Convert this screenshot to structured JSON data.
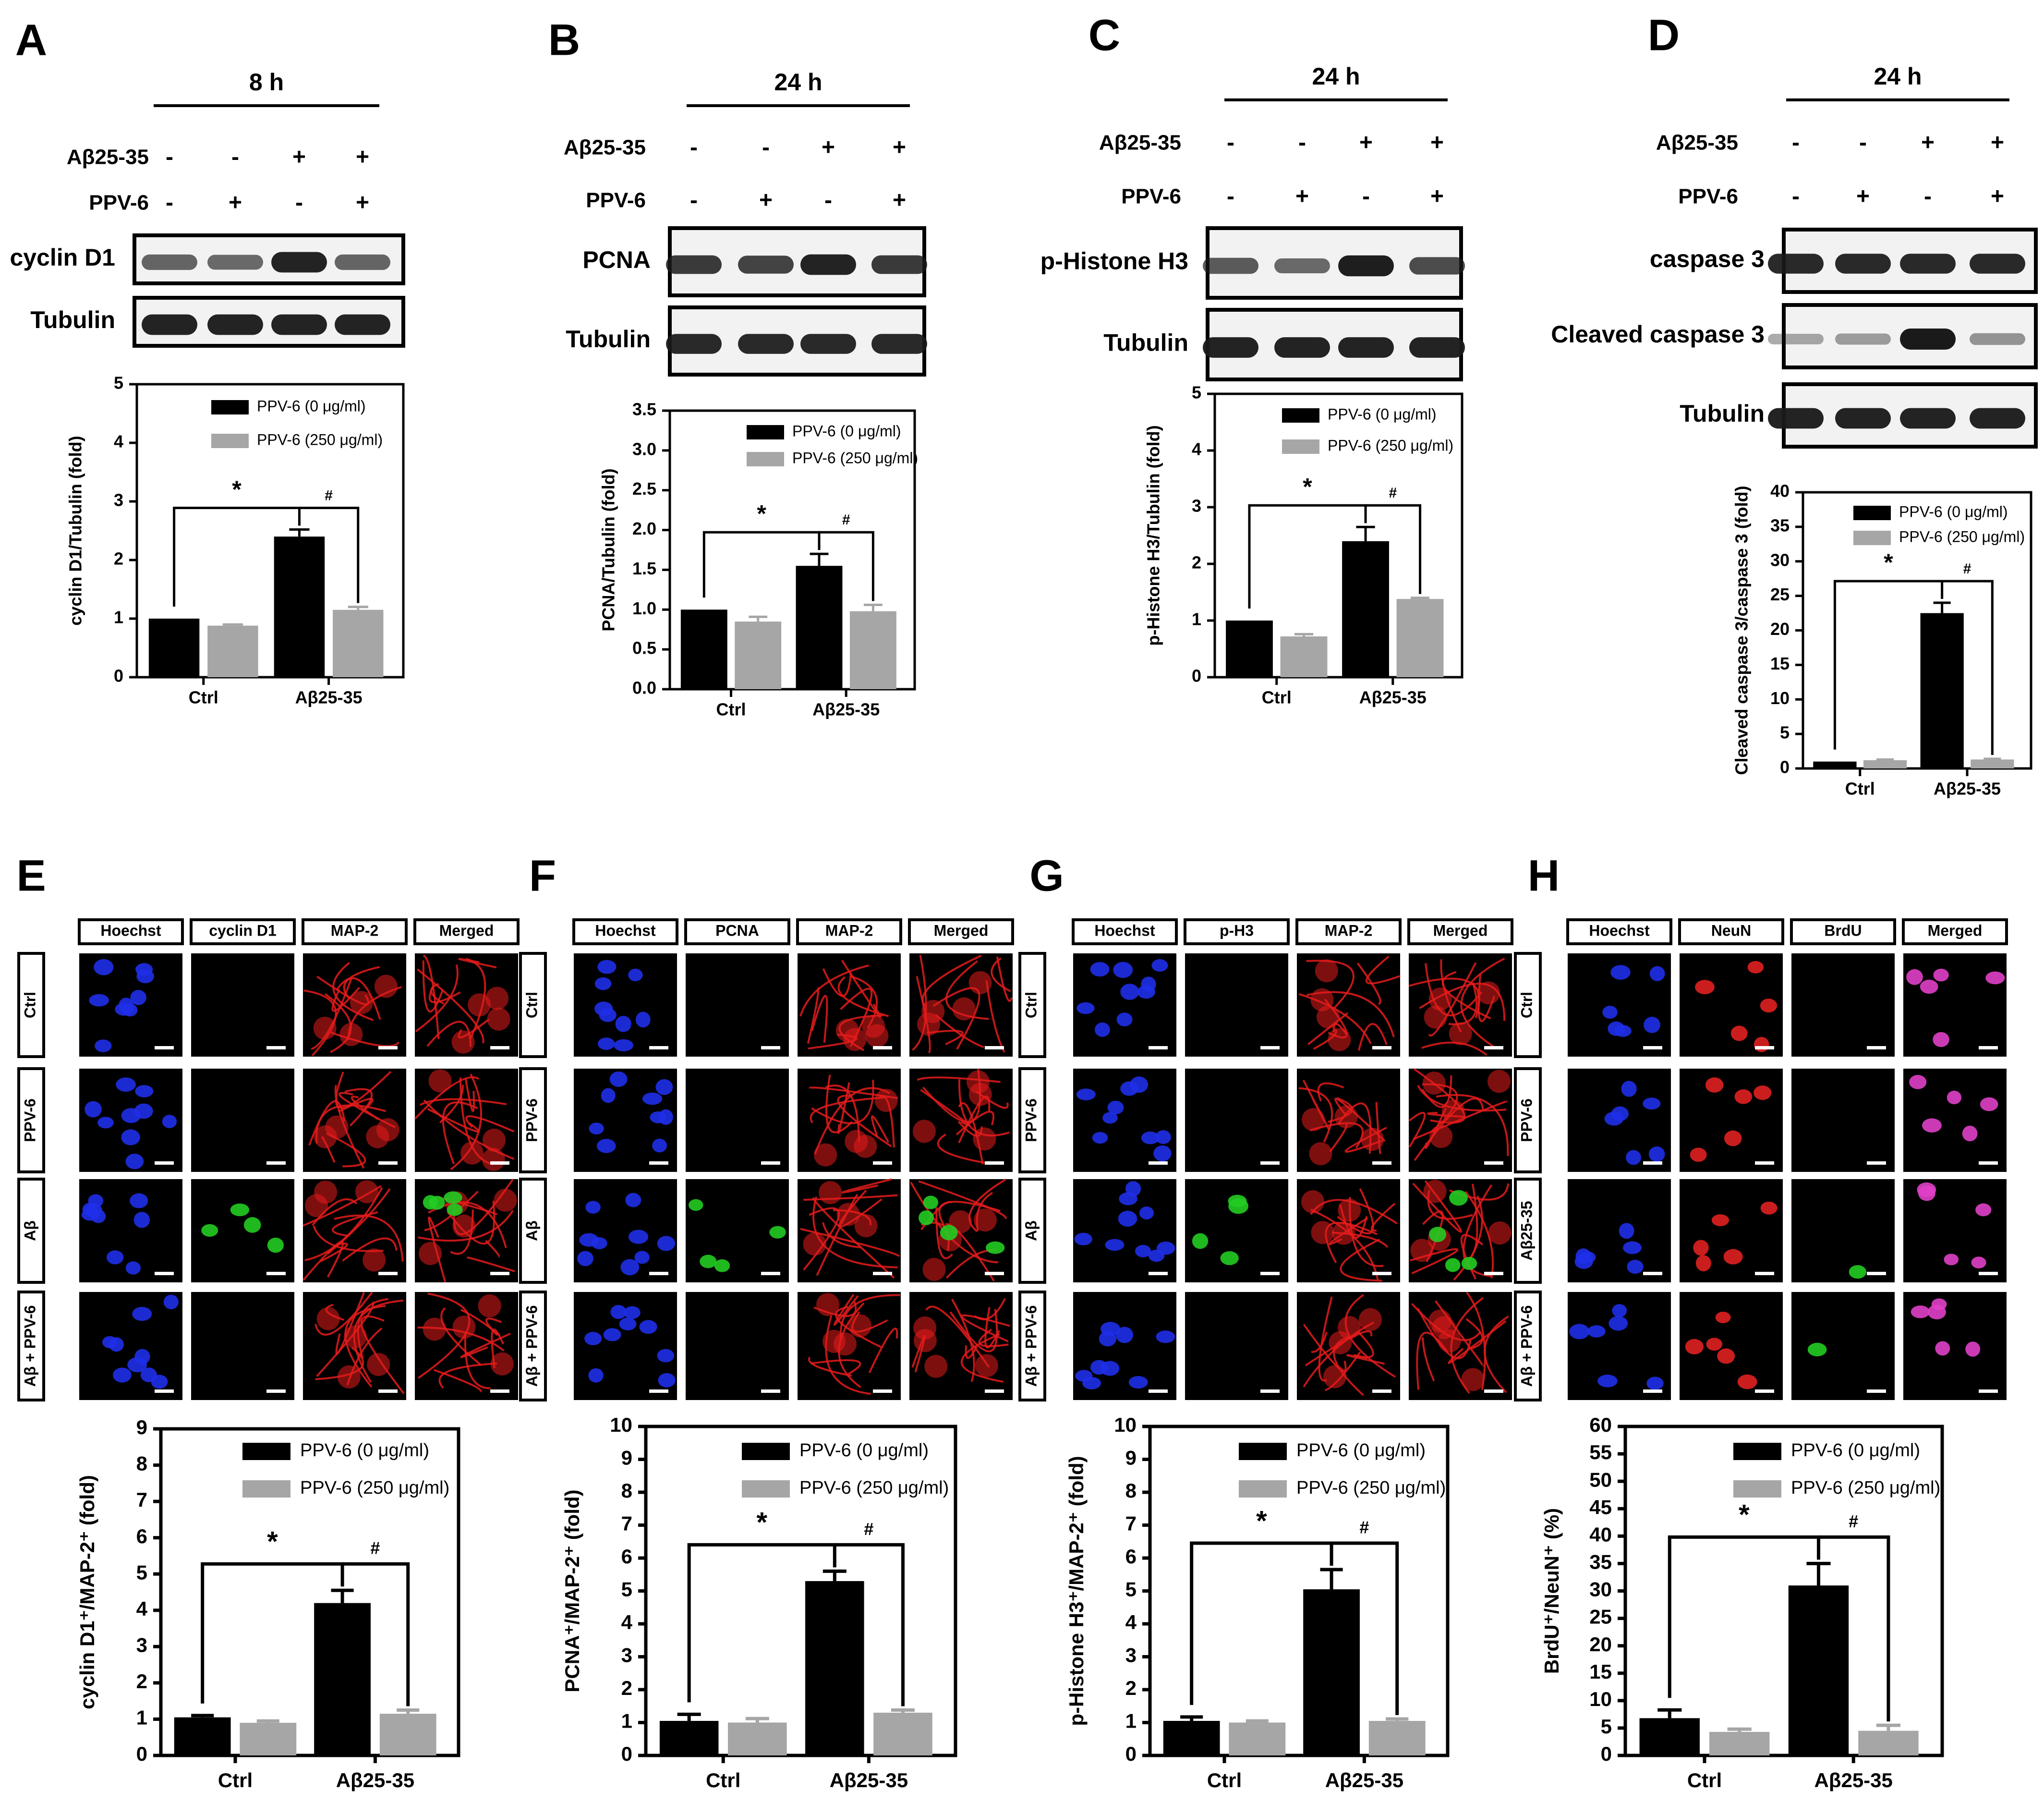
{
  "colors": {
    "series0": "#000000",
    "series1": "#a6a6a6",
    "blot_background": "#f2f2f2",
    "band": "#1a1a1a",
    "hoechst": "#1f2fe8",
    "map2": "#e51b1b",
    "green_stain": "#22cc22",
    "neun": "#e02020",
    "merged_magenta": "#e040c8"
  },
  "labels": {
    "legend_0": "PPV-6 (0 μg/ml)",
    "legend_250": "PPV-6 (250 μg/ml)",
    "ctrl": "Ctrl",
    "abeta": "Aβ25-35",
    "star": "*",
    "hash": "#"
  },
  "western_panels": [
    {
      "letter": "A",
      "time": "8 h",
      "treatment_rows": [
        {
          "label": "Aβ25-35",
          "signs": [
            "-",
            "-",
            "+",
            "+"
          ]
        },
        {
          "label": "PPV-6",
          "signs": [
            "-",
            "+",
            "-",
            "+"
          ]
        }
      ],
      "blots": [
        {
          "label": "cyclin D1",
          "intensity": [
            0.55,
            0.5,
            0.95,
            0.55
          ]
        },
        {
          "label": "Tubulin",
          "intensity": [
            0.95,
            0.95,
            0.95,
            0.95
          ]
        }
      ]
    },
    {
      "letter": "B",
      "time": "24 h",
      "treatment_rows": [
        {
          "label": "Aβ25-35",
          "signs": [
            "-",
            "-",
            "+",
            "+"
          ]
        },
        {
          "label": "PPV-6",
          "signs": [
            "-",
            "+",
            "-",
            "+"
          ]
        }
      ],
      "blots": [
        {
          "label": "PCNA",
          "intensity": [
            0.8,
            0.75,
            0.95,
            0.8
          ]
        },
        {
          "label": "Tubulin",
          "intensity": [
            0.9,
            0.9,
            0.9,
            0.9
          ]
        }
      ]
    },
    {
      "letter": "C",
      "time": "24 h",
      "treatment_rows": [
        {
          "label": "Aβ25-35",
          "signs": [
            "-",
            "-",
            "+",
            "+"
          ]
        },
        {
          "label": "PPV-6",
          "signs": [
            "-",
            "+",
            "-",
            "+"
          ]
        }
      ],
      "blots": [
        {
          "label": "p-Histone H3",
          "intensity": [
            0.6,
            0.5,
            0.98,
            0.7
          ]
        },
        {
          "label": "Tubulin",
          "intensity": [
            0.95,
            0.95,
            0.95,
            0.95
          ]
        }
      ]
    },
    {
      "letter": "D",
      "time": "24 h",
      "treatment_rows": [
        {
          "label": "Aβ25-35",
          "signs": [
            "-",
            "-",
            "+",
            "+"
          ]
        },
        {
          "label": "PPV-6",
          "signs": [
            "-",
            "+",
            "-",
            "+"
          ]
        }
      ],
      "blots": [
        {
          "label": "caspase 3",
          "intensity": [
            0.9,
            0.9,
            0.9,
            0.9
          ]
        },
        {
          "label": "Cleaved caspase 3",
          "intensity": [
            0.15,
            0.2,
            1.0,
            0.25
          ]
        },
        {
          "label": "Tubulin",
          "intensity": [
            0.95,
            0.95,
            0.95,
            0.95
          ]
        }
      ]
    }
  ],
  "image_panels": [
    {
      "letter": "E",
      "columns": [
        "Hoechst",
        "cyclin D1",
        "MAP-2",
        "Merged"
      ],
      "rows": [
        "Ctrl",
        "PPV-6",
        "Aβ",
        "Aβ + PPV-6"
      ]
    },
    {
      "letter": "F",
      "columns": [
        "Hoechst",
        "PCNA",
        "MAP-2",
        "Merged"
      ],
      "rows": [
        "Ctrl",
        "PPV-6",
        "Aβ",
        "Aβ + PPV-6"
      ]
    },
    {
      "letter": "G",
      "columns": [
        "Hoechst",
        "p-H3",
        "MAP-2",
        "Merged"
      ],
      "rows": [
        "Ctrl",
        "PPV-6",
        "Aβ",
        "Aβ + PPV-6"
      ]
    },
    {
      "letter": "H",
      "columns": [
        "Hoechst",
        "NeuN",
        "BrdU",
        "Merged"
      ],
      "rows": [
        "Ctrl",
        "PPV-6",
        "Aβ25-35",
        "Aβ + PPV-6"
      ]
    }
  ],
  "chart_data": [
    {
      "panel": "A",
      "type": "bar",
      "categories": [
        "Ctrl",
        "Aβ25-35"
      ],
      "series": [
        {
          "name": "PPV-6 (0 μg/ml)",
          "values": [
            1.0,
            2.4
          ],
          "errors": [
            0.0,
            0.12
          ]
        },
        {
          "name": "PPV-6 (250 μg/ml)",
          "values": [
            0.88,
            1.15
          ],
          "errors": [
            0.02,
            0.05
          ]
        }
      ],
      "ylabel": "cyclin D1/Tubulin (fold)",
      "yticks": [
        "0",
        "1",
        "2",
        "3",
        "4",
        "5"
      ],
      "ylim": [
        0,
        5
      ]
    },
    {
      "panel": "B",
      "type": "bar",
      "categories": [
        "Ctrl",
        "Aβ25-35"
      ],
      "series": [
        {
          "name": "PPV-6 (0 μg/ml)",
          "values": [
            1.0,
            1.55
          ],
          "errors": [
            0.0,
            0.15
          ]
        },
        {
          "name": "PPV-6 (250 μg/ml)",
          "values": [
            0.85,
            0.98
          ],
          "errors": [
            0.06,
            0.08
          ]
        }
      ],
      "ylabel": "PCNA/Tubulin (fold)",
      "yticks": [
        "0.0",
        "0.5",
        "1.0",
        "1.5",
        "2.0",
        "2.5",
        "3.0",
        "3.5"
      ],
      "ylim": [
        0,
        3.5
      ]
    },
    {
      "panel": "C",
      "type": "bar",
      "categories": [
        "Ctrl",
        "Aβ25-35"
      ],
      "series": [
        {
          "name": "PPV-6 (0 μg/ml)",
          "values": [
            1.0,
            2.4
          ],
          "errors": [
            0.0,
            0.25
          ]
        },
        {
          "name": "PPV-6 (250 μg/ml)",
          "values": [
            0.72,
            1.38
          ],
          "errors": [
            0.04,
            0.02
          ]
        }
      ],
      "ylabel": "p-Histone H3/Tubulin (fold)",
      "yticks": [
        "0",
        "1",
        "2",
        "3",
        "4",
        "5"
      ],
      "ylim": [
        0,
        5
      ]
    },
    {
      "panel": "D",
      "type": "bar",
      "categories": [
        "Ctrl",
        "Aβ25-35"
      ],
      "series": [
        {
          "name": "PPV-6 (0 μg/ml)",
          "values": [
            1.0,
            22.5
          ],
          "errors": [
            0.0,
            1.5
          ]
        },
        {
          "name": "PPV-6 (250 μg/ml)",
          "values": [
            1.2,
            1.3
          ],
          "errors": [
            0.1,
            0.1
          ]
        }
      ],
      "ylabel": "Cleaved caspase 3/caspase 3 (fold)",
      "yticks": [
        "0",
        "5",
        "10",
        "15",
        "20",
        "25",
        "30",
        "35",
        "40"
      ],
      "ylim": [
        0,
        40
      ]
    },
    {
      "panel": "E",
      "type": "bar",
      "categories": [
        "Ctrl",
        "Aβ25-35"
      ],
      "series": [
        {
          "name": "PPV-6 (0 μg/ml)",
          "values": [
            1.05,
            4.2
          ],
          "errors": [
            0.05,
            0.35
          ]
        },
        {
          "name": "PPV-6 (250 μg/ml)",
          "values": [
            0.9,
            1.15
          ],
          "errors": [
            0.05,
            0.1
          ]
        }
      ],
      "ylabel": "cyclin D1⁺/MAP-2⁺ (fold)",
      "yticks": [
        "0",
        "1",
        "2",
        "3",
        "4",
        "5",
        "6",
        "7",
        "8",
        "9"
      ],
      "ylim": [
        0,
        9
      ]
    },
    {
      "panel": "F",
      "type": "bar",
      "categories": [
        "Ctrl",
        "Aβ25-35"
      ],
      "series": [
        {
          "name": "PPV-6 (0 μg/ml)",
          "values": [
            1.05,
            5.3
          ],
          "errors": [
            0.2,
            0.3
          ]
        },
        {
          "name": "PPV-6 (250 μg/ml)",
          "values": [
            1.0,
            1.3
          ],
          "errors": [
            0.12,
            0.08
          ]
        }
      ],
      "ylabel": "PCNA⁺/MAP-2⁺ (fold)",
      "yticks": [
        "0",
        "1",
        "2",
        "3",
        "4",
        "5",
        "6",
        "7",
        "8",
        "9",
        "10"
      ],
      "ylim": [
        0,
        10
      ]
    },
    {
      "panel": "G",
      "type": "bar",
      "categories": [
        "Ctrl",
        "Aβ25-35"
      ],
      "series": [
        {
          "name": "PPV-6 (0 μg/ml)",
          "values": [
            1.05,
            5.05
          ],
          "errors": [
            0.12,
            0.6
          ]
        },
        {
          "name": "PPV-6 (250 μg/ml)",
          "values": [
            1.0,
            1.05
          ],
          "errors": [
            0.05,
            0.06
          ]
        }
      ],
      "ylabel": "p-Histone H3⁺/MAP-2⁺ (fold)",
      "yticks": [
        "0",
        "1",
        "2",
        "3",
        "4",
        "5",
        "6",
        "7",
        "8",
        "9",
        "10"
      ],
      "ylim": [
        0,
        10
      ]
    },
    {
      "panel": "H",
      "type": "bar",
      "categories": [
        "Ctrl",
        "Aβ25-35"
      ],
      "series": [
        {
          "name": "PPV-6 (0 μg/ml)",
          "values": [
            6.8,
            31.0
          ],
          "errors": [
            1.5,
            4.0
          ]
        },
        {
          "name": "PPV-6 (250 μg/ml)",
          "values": [
            4.3,
            4.5
          ],
          "errors": [
            0.5,
            1.0
          ]
        }
      ],
      "ylabel": "BrdU⁺/NeuN⁺ (%)",
      "yticks": [
        "0",
        "5",
        "10",
        "15",
        "20",
        "25",
        "30",
        "35",
        "40",
        "45",
        "50",
        "55",
        "60"
      ],
      "ylim": [
        0,
        60
      ]
    }
  ]
}
